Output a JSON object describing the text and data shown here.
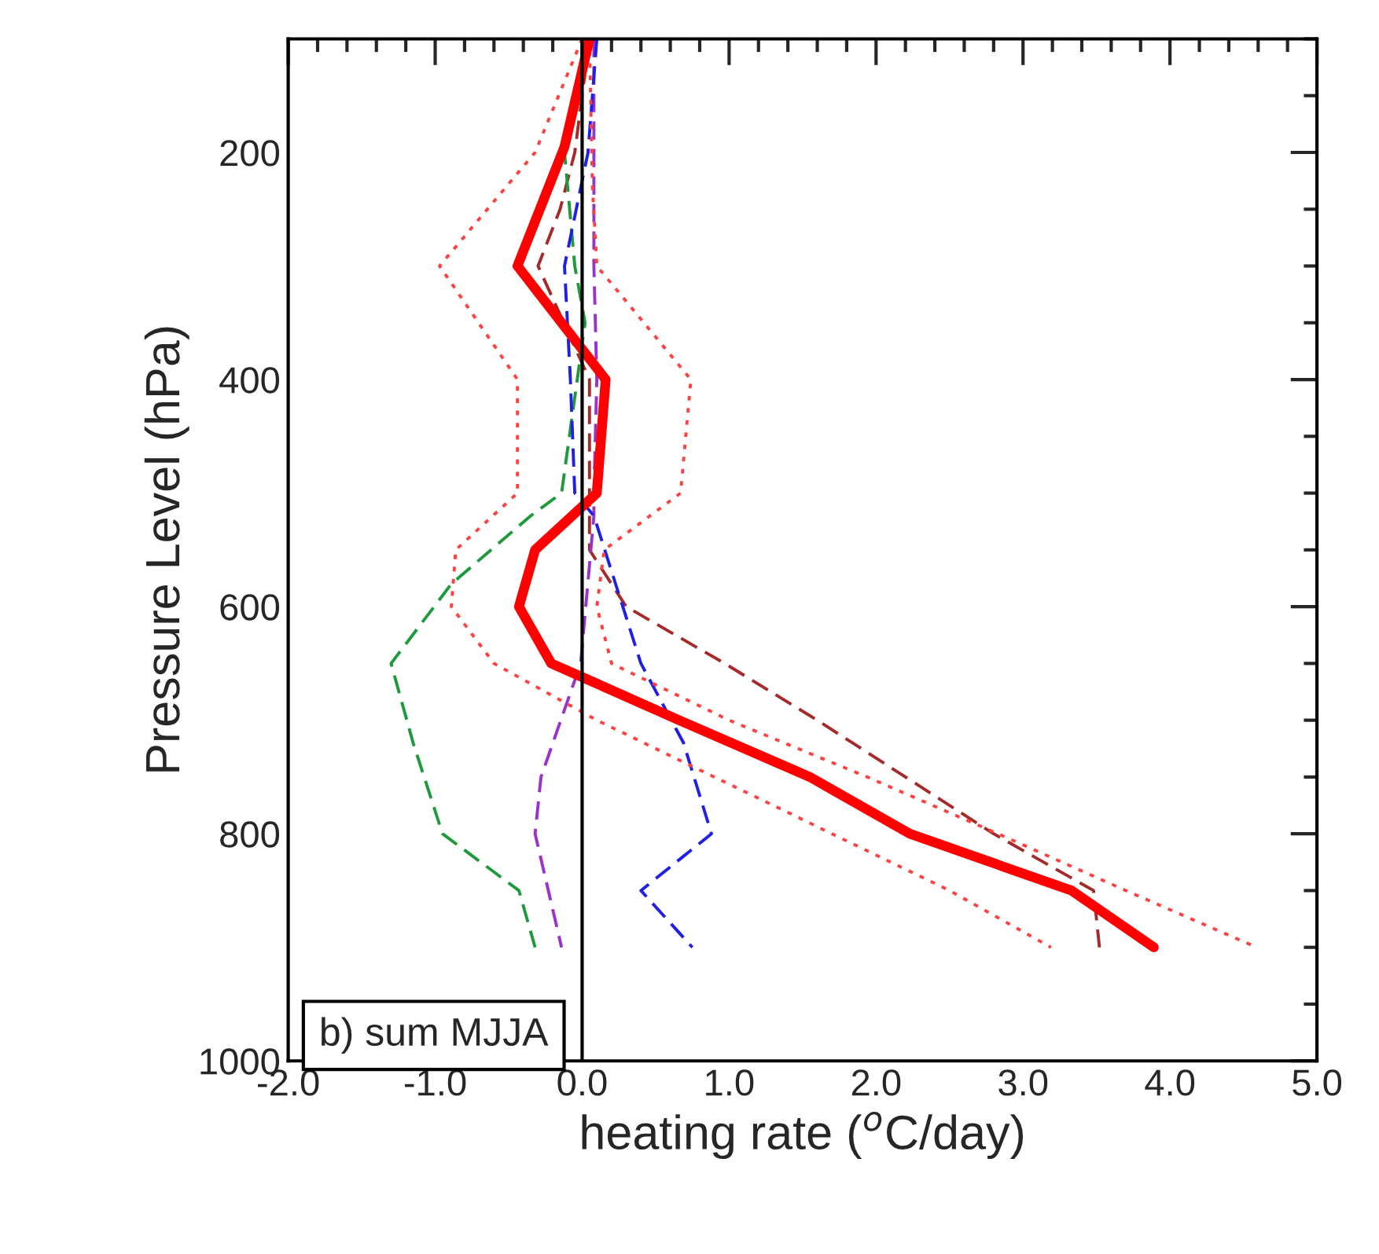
{
  "chart_data": {
    "type": "line",
    "xlabel": "heating rate ($^{o}$C/day)",
    "ylabel": "Pressure Level (hPa)",
    "xlim": [
      -2,
      5
    ],
    "xticks": [
      {
        "value": -2,
        "label": "-2.0"
      },
      {
        "value": -1,
        "label": "-1.0"
      },
      {
        "value": 0,
        "label": "0.0"
      },
      {
        "value": 1,
        "label": "1.0"
      },
      {
        "value": 2,
        "label": "2.0"
      },
      {
        "value": 3,
        "label": "3.0"
      },
      {
        "value": 4,
        "label": "4.0"
      },
      {
        "value": 5,
        "label": "5.0"
      }
    ],
    "ylim": [
      1000,
      100
    ],
    "yticks": [
      200,
      400,
      600,
      800,
      1000
    ],
    "grid": false,
    "legend": false,
    "marker": "none",
    "ref_lines": [
      {
        "axis": "x",
        "value": 0,
        "color": "#000000",
        "line_style": "solid"
      }
    ],
    "annotations": [
      "b) sum MJJA"
    ],
    "series": [
      {
        "color": "#a52a2a",
        "line_style": "dashed",
        "x": [
          0.05,
          -0.05,
          -0.15,
          -0.3,
          0.05,
          0.05,
          0.05,
          0.3,
          0.97,
          1.6,
          2.2,
          2.8,
          3.48,
          3.52
        ],
        "values": [
          100,
          200,
          250,
          300,
          400,
          500,
          550,
          600,
          650,
          700,
          750,
          800,
          850,
          900
        ]
      },
      {
        "color": "#1e9a3c",
        "line_style": "dashed",
        "x": [
          0.05,
          -0.12,
          -0.05,
          0.02,
          -0.14,
          -0.35,
          -0.89,
          -1.3,
          -1.15,
          -0.95,
          -0.43,
          -0.32
        ],
        "values": [
          100,
          200,
          300,
          350,
          500,
          520,
          580,
          650,
          720,
          800,
          850,
          900
        ]
      },
      {
        "color": "#9933cc",
        "line_style": "dashed",
        "x": [
          0.08,
          0.08,
          0.08,
          0.1,
          0.08,
          0.08,
          -0.01,
          -0.28,
          -0.32,
          -0.14
        ],
        "values": [
          100,
          200,
          300,
          400,
          500,
          520,
          650,
          750,
          800,
          900
        ]
      },
      {
        "color": "#1f1fe6",
        "line_style": "dashed",
        "x": [
          0.1,
          0.04,
          -0.12,
          -0.08,
          -0.05,
          0.08,
          0.4,
          0.69,
          0.88,
          0.4,
          0.75
        ],
        "values": [
          100,
          200,
          300,
          400,
          500,
          520,
          650,
          720,
          800,
          850,
          900
        ]
      },
      {
        "color": "#ff4040",
        "line_style": "dotted",
        "x": [
          0.0,
          -0.32,
          -0.97,
          -0.44,
          -0.44,
          -0.86,
          -0.89,
          -0.6,
          0.1,
          0.9,
          1.7,
          2.5,
          3.19
        ],
        "values": [
          100,
          200,
          300,
          400,
          500,
          550,
          600,
          650,
          700,
          750,
          800,
          850,
          900
        ]
      },
      {
        "color": "#ff4040",
        "line_style": "dotted",
        "x": [
          0.05,
          0.07,
          0.1,
          0.74,
          0.67,
          0.15,
          0.1,
          0.2,
          1.0,
          1.94,
          2.83,
          3.7,
          4.59
        ],
        "values": [
          100,
          230,
          300,
          400,
          500,
          550,
          600,
          650,
          700,
          750,
          800,
          850,
          900
        ]
      },
      {
        "color": "#ff0000",
        "line_style": "solid",
        "x": [
          0.05,
          -0.12,
          -0.44,
          0.16,
          0.1,
          -0.32,
          -0.43,
          -0.21,
          0.0,
          0.66,
          1.55,
          2.23,
          3.33,
          3.89
        ],
        "values": [
          100,
          195,
          300,
          400,
          500,
          550,
          600,
          650,
          662,
          700,
          750,
          800,
          850,
          900
        ]
      }
    ]
  }
}
